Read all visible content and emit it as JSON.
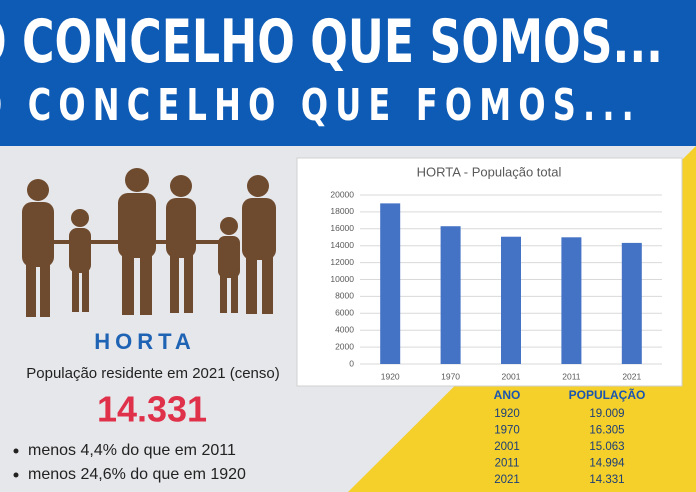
{
  "header": {
    "line1": "O CONCELHO QUE SOMOS...",
    "line2": "O CONCELHO QUE FOMOS..."
  },
  "place": "HORTA",
  "subtitle": "População residente em 2021 (censo)",
  "population": "14.331",
  "bullets": [
    "menos 4,4% do que em 2011",
    "menos 24,6% do que em 1920"
  ],
  "table": {
    "header": [
      "ANO",
      "POPULAÇÃO"
    ],
    "rows": [
      [
        "1920",
        "19.009"
      ],
      [
        "1970",
        "16.305"
      ],
      [
        "2001",
        "15.063"
      ],
      [
        "2011",
        "14.994"
      ],
      [
        "2021",
        "14.331"
      ]
    ]
  },
  "chart_data": {
    "type": "bar",
    "title": "HORTA - População total",
    "categories": [
      "1920",
      "1970",
      "2001",
      "2011",
      "2021"
    ],
    "values": [
      19009,
      16305,
      15063,
      14994,
      14331
    ],
    "color": "#4472c4",
    "ylim": [
      0,
      20000
    ],
    "yticks": [
      0,
      2000,
      4000,
      6000,
      8000,
      10000,
      12000,
      14000,
      16000,
      18000,
      20000
    ],
    "grid": true
  }
}
